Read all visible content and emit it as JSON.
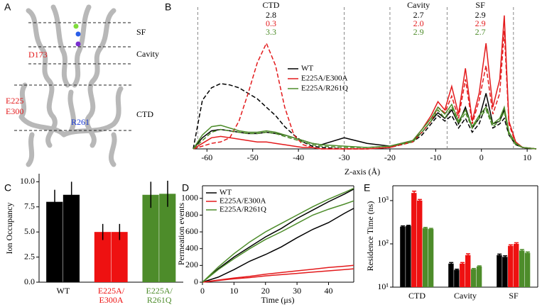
{
  "panel_a": {
    "panel_label": "A",
    "annotations": [
      "SF",
      "Cavity",
      "CTD",
      "D173",
      "E225",
      "E300",
      "R261"
    ]
  },
  "chart_data": [
    {
      "type": "line",
      "panel_label": "B",
      "x_label": "Z-axis (Å)",
      "x": [
        -63,
        -61,
        -59,
        -57,
        -55,
        -53,
        -51,
        -49,
        -47,
        -45,
        -43,
        -41,
        -39,
        -37,
        -35,
        -30,
        -25,
        -20,
        -15,
        -13,
        -11,
        -9.5,
        -8,
        -6.5,
        -5,
        -3.5,
        -2,
        -0.5,
        1,
        2.5,
        4,
        5,
        6,
        7.5,
        9,
        12
      ],
      "xlim": [
        -63,
        12
      ],
      "xticks": [
        -60,
        -50,
        -40,
        -30,
        -20,
        -10,
        0,
        10
      ],
      "ylim": [
        0,
        100
      ],
      "second_replica_dashed": true,
      "series": [
        {
          "name": "WT",
          "color": "#000000",
          "values": [
            [
              0,
              8,
              13,
              14,
              13,
              12,
              11,
              11,
              12,
              11,
              10,
              8,
              6,
              4,
              3,
              8,
              4,
              2,
              6,
              12,
              20,
              26,
              22,
              28,
              18,
              30,
              15,
              22,
              40,
              18,
              20,
              28,
              12,
              4,
              1,
              0
            ],
            [
              0,
              35,
              44,
              47,
              46,
              44,
              40,
              36,
              30,
              24,
              16,
              10,
              5,
              2,
              1,
              0,
              0,
              1,
              5,
              10,
              18,
              24,
              20,
              24,
              15,
              22,
              12,
              18,
              32,
              15,
              18,
              22,
              10,
              3,
              1,
              0
            ]
          ]
        },
        {
          "name": "E225A/E300A",
          "color": "#e31a1c",
          "values": [
            [
              0,
              4,
              8,
              9,
              8,
              7,
              6,
              5,
              5,
              4,
              3,
              2,
              1,
              1,
              0,
              0,
              0,
              1,
              6,
              14,
              24,
              34,
              28,
              45,
              25,
              58,
              20,
              40,
              76,
              30,
              50,
              96,
              20,
              5,
              1,
              0
            ],
            [
              0,
              2,
              4,
              5,
              8,
              20,
              40,
              62,
              76,
              60,
              30,
              10,
              3,
              1,
              0,
              0,
              0,
              1,
              5,
              12,
              20,
              30,
              26,
              38,
              22,
              50,
              18,
              35,
              60,
              25,
              40,
              85,
              18,
              4,
              1,
              0
            ]
          ]
        },
        {
          "name": "E225A/R261Q",
          "color": "#4d8c2a",
          "values": [
            [
              0,
              10,
              16,
              17,
              15,
              13,
              12,
              12,
              13,
              12,
              10,
              8,
              6,
              4,
              3,
              2,
              1,
              2,
              6,
              14,
              22,
              30,
              25,
              32,
              20,
              28,
              16,
              24,
              30,
              18,
              22,
              30,
              12,
              4,
              1,
              0
            ],
            [
              0,
              6,
              12,
              14,
              13,
              12,
              11,
              11,
              12,
              11,
              9,
              7,
              5,
              3,
              2,
              1,
              1,
              2,
              5,
              12,
              20,
              28,
              22,
              30,
              18,
              26,
              15,
              22,
              28,
              16,
              20,
              27,
              10,
              3,
              1,
              0
            ]
          ]
        }
      ],
      "region_bounds": [
        -62,
        -30,
        -20,
        -7.5,
        7
      ],
      "regions": [
        {
          "label": "CTD",
          "from": -62,
          "to": -30,
          "values": [
            2.8,
            0.3,
            3.3
          ]
        },
        {
          "label": "Cavity",
          "from": -20,
          "to": -7.5,
          "values": [
            2.7,
            {
              "value": 2,
              "label": "2.0"
            },
            2.9
          ]
        },
        {
          "label": "SF",
          "from": -7.5,
          "to": 7,
          "values": [
            2.9,
            2.9,
            2.7
          ]
        }
      ]
    },
    {
      "type": "bar",
      "panel_label": "C",
      "y_label": "Ion Occupancy",
      "categories": [
        [
          "WT"
        ],
        [
          "E225A/",
          "E300A"
        ],
        [
          "E225A/",
          "R261Q"
        ]
      ],
      "colors": [
        "#000000",
        "#ee1111",
        "#4d8c2a"
      ],
      "values": [
        [
          8.0,
          8.7
        ],
        [
          5.0,
          5.0
        ],
        [
          8.7,
          8.8
        ]
      ],
      "errors": [
        [
          1.2,
          1.3
        ],
        [
          0.8,
          0.8
        ],
        [
          1.3,
          1.3
        ]
      ],
      "ylim": [
        0,
        10.8
      ],
      "yticks": [
        {
          "value": 0,
          "label": "0.0"
        },
        {
          "value": 2.5,
          "label": "2.5"
        },
        {
          "value": 5,
          "label": "5.0"
        },
        {
          "value": 7.5,
          "label": "7.5"
        },
        {
          "value": 10,
          "label": "10.0"
        }
      ]
    },
    {
      "type": "line",
      "panel_label": "D",
      "x_label": "Time (μs)",
      "y_label": "Permeation events",
      "x": [
        0,
        5,
        10,
        15,
        20,
        25,
        30,
        35,
        40,
        45,
        48
      ],
      "xlim": [
        0,
        48
      ],
      "xticks": [
        0,
        10,
        20,
        30,
        40
      ],
      "ylim": [
        0,
        1150
      ],
      "yticks": [
        0,
        200,
        400,
        600,
        800,
        1000
      ],
      "second_replica_dashed": false,
      "series": [
        {
          "name": "WT",
          "color": "#000000",
          "values": [
            [
              0,
              160,
              300,
              420,
              540,
              640,
              760,
              860,
              960,
              1050,
              1110
            ],
            [
              0,
              60,
              150,
              250,
              330,
              420,
              530,
              630,
              710,
              820,
              880
            ]
          ]
        },
        {
          "name": "E225A/E300A",
          "color": "#e31a1c",
          "values": [
            [
              0,
              25,
              50,
              70,
              95,
              115,
              135,
              155,
              175,
              190,
              200
            ],
            [
              0,
              20,
              40,
              55,
              75,
              90,
              105,
              120,
              135,
              150,
              160
            ]
          ]
        },
        {
          "name": "E225A/R261Q",
          "color": "#4d8c2a",
          "values": [
            [
              0,
              180,
              340,
              480,
              600,
              700,
              800,
              900,
              990,
              1070,
              1120
            ],
            [
              0,
              150,
              280,
              400,
              510,
              600,
              700,
              800,
              870,
              930,
              970
            ]
          ]
        }
      ]
    },
    {
      "type": "bar",
      "panel_label": "E",
      "y_label": "Residence Time (ns)",
      "log_scale": true,
      "categories": [
        [
          "CTD"
        ],
        [
          "Cavity"
        ],
        [
          "SF"
        ]
      ],
      "bar_colors": [
        "#000000",
        "#000000",
        "#ee1111",
        "#ee1111",
        "#4d8c2a",
        "#4d8c2a"
      ],
      "values": [
        [
          250,
          260,
          1500,
          1000,
          230,
          220
        ],
        [
          35,
          25,
          35,
          55,
          26,
          30
        ],
        [
          55,
          50,
          90,
          100,
          70,
          62
        ]
      ],
      "errors": [
        [
          10,
          8,
          150,
          60,
          10,
          8
        ],
        [
          2,
          1,
          2,
          4,
          1,
          1
        ],
        [
          3,
          3,
          5,
          6,
          4,
          3
        ]
      ],
      "ylim": [
        10,
        2200
      ],
      "yticks": [
        {
          "value": 10,
          "label": "10¹"
        },
        {
          "value": 100,
          "label": "10²"
        },
        {
          "value": 1000,
          "label": "10³"
        }
      ]
    }
  ]
}
